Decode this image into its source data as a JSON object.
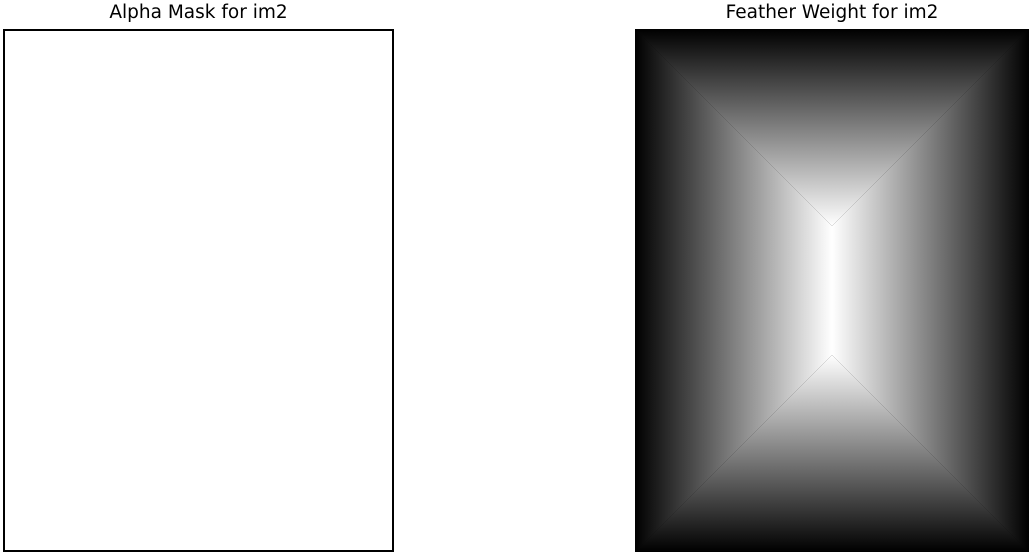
{
  "panels": [
    {
      "title": "Alpha Mask for im2",
      "image": "uniform white mask with black border"
    },
    {
      "title": "Feather Weight for im2",
      "image": "grayscale distance-to-edge weight map, white at center ridge, black at borders"
    }
  ],
  "colors": {
    "mask_fill": "#ffffff",
    "border": "#000000",
    "feather_high": "#ffffff",
    "feather_low": "#000000"
  }
}
